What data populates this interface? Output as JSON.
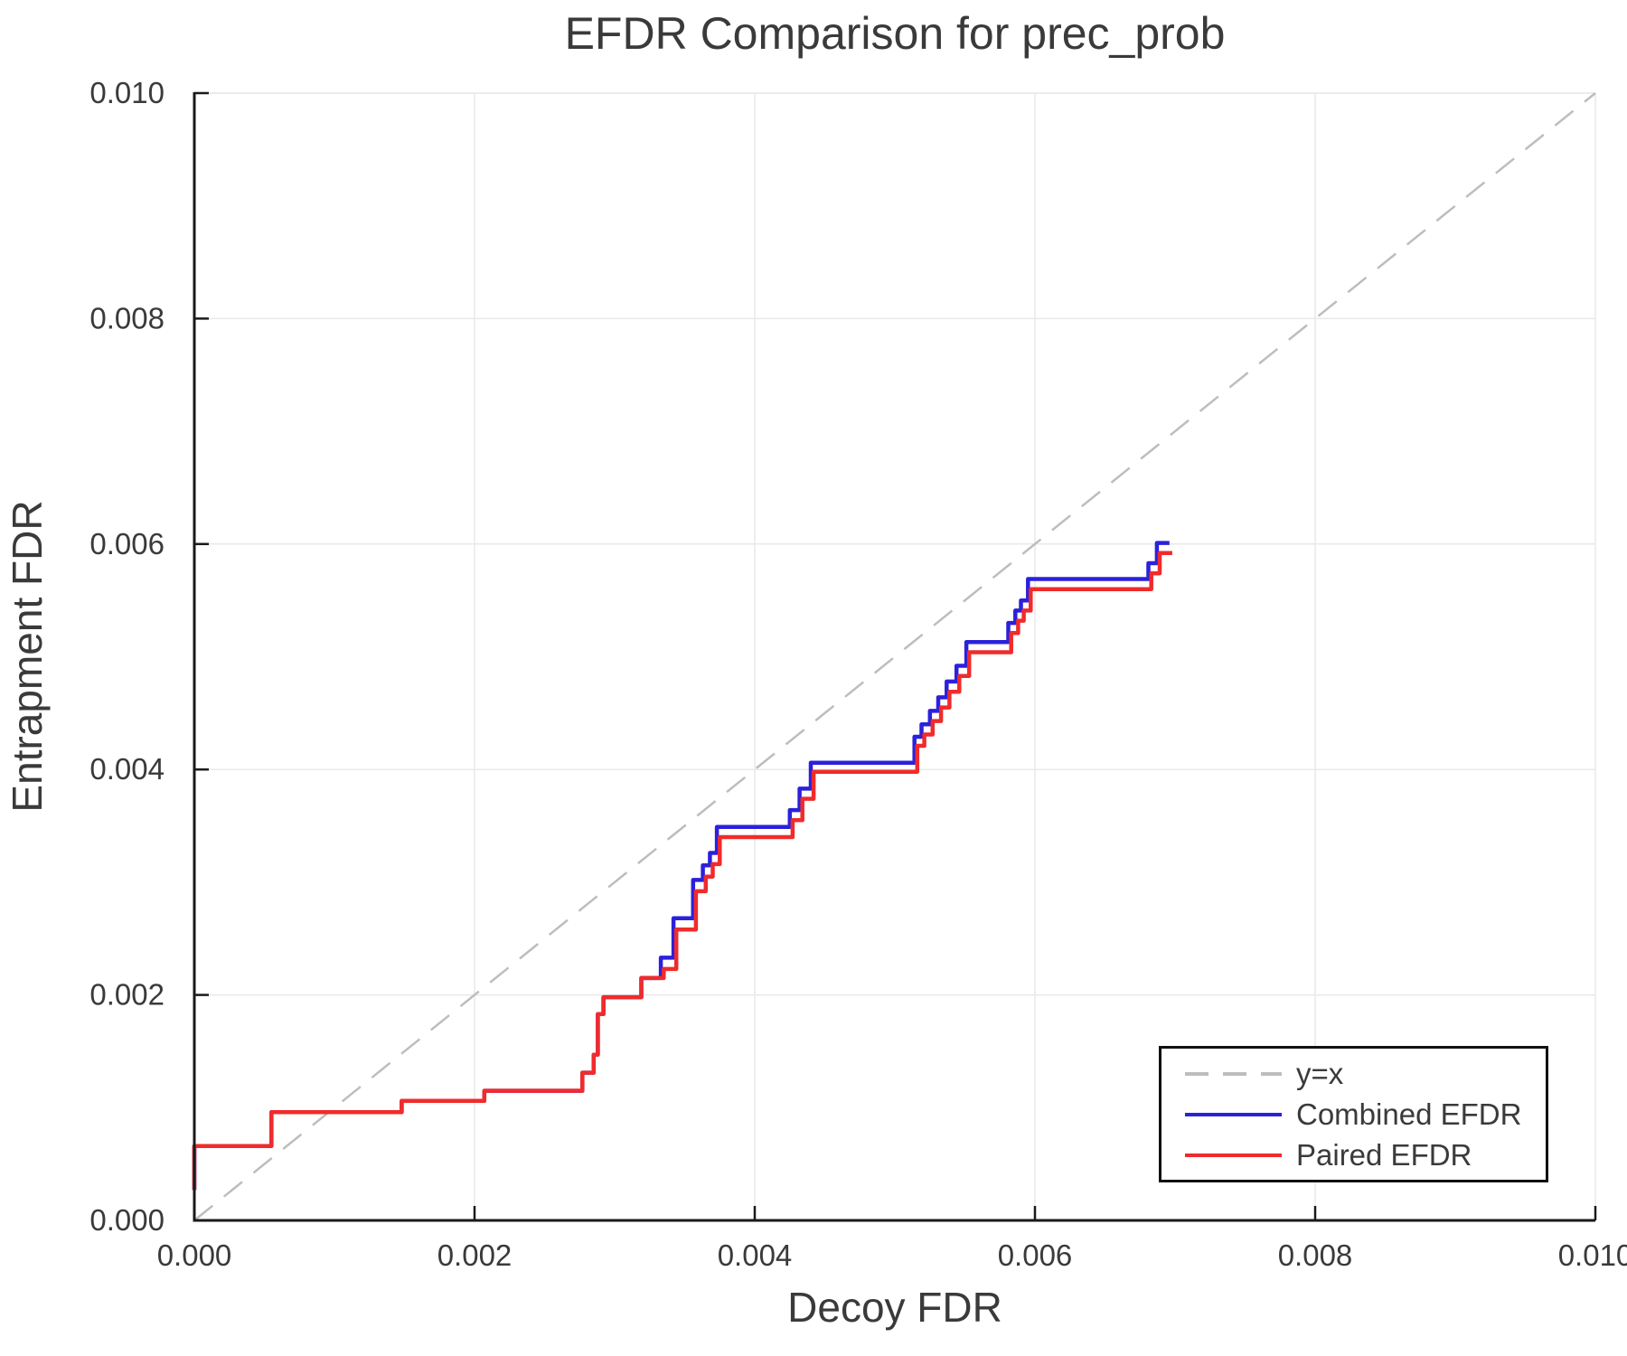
{
  "chart_data": {
    "type": "line",
    "title": "EFDR Comparison for prec_prob",
    "xlabel": "Decoy FDR",
    "ylabel": "Entrapment FDR",
    "xlim": [
      0.0,
      0.01
    ],
    "ylim": [
      0.0,
      0.01
    ],
    "x_ticks": [
      0.0,
      0.002,
      0.004,
      0.006,
      0.008,
      0.01
    ],
    "y_ticks": [
      0.0,
      0.002,
      0.004,
      0.006,
      0.008,
      0.01
    ],
    "tick_decimals": 3,
    "grid": true,
    "legend_position": "lower right",
    "reference_line": {
      "label": "y=x",
      "style": "dashed",
      "color": "#bdbdbd",
      "points": [
        [
          0.0,
          0.0
        ],
        [
          0.01,
          0.01
        ]
      ]
    },
    "series": [
      {
        "name": "Combined EFDR",
        "color": "#2b21db",
        "step": true,
        "points": [
          [
            0.0,
            0.00027
          ],
          [
            0.0,
            0.00066
          ],
          [
            0.00055,
            0.00066
          ],
          [
            0.00055,
            0.00096
          ],
          [
            0.00148,
            0.00096
          ],
          [
            0.00148,
            0.00106
          ],
          [
            0.00207,
            0.00106
          ],
          [
            0.00207,
            0.00115
          ],
          [
            0.00277,
            0.00115
          ],
          [
            0.00277,
            0.00131
          ],
          [
            0.00285,
            0.00131
          ],
          [
            0.00285,
            0.00147
          ],
          [
            0.00288,
            0.00147
          ],
          [
            0.00288,
            0.00183
          ],
          [
            0.00292,
            0.00183
          ],
          [
            0.00292,
            0.00198
          ],
          [
            0.00319,
            0.00198
          ],
          [
            0.00319,
            0.00215
          ],
          [
            0.00333,
            0.00215
          ],
          [
            0.00333,
            0.00233
          ],
          [
            0.00342,
            0.00233
          ],
          [
            0.00342,
            0.00268
          ],
          [
            0.00356,
            0.00268
          ],
          [
            0.00356,
            0.00302
          ],
          [
            0.00363,
            0.00302
          ],
          [
            0.00363,
            0.00315
          ],
          [
            0.00368,
            0.00315
          ],
          [
            0.00368,
            0.00326
          ],
          [
            0.00373,
            0.00326
          ],
          [
            0.00373,
            0.00349
          ],
          [
            0.00425,
            0.00349
          ],
          [
            0.00425,
            0.00364
          ],
          [
            0.00432,
            0.00364
          ],
          [
            0.00432,
            0.00383
          ],
          [
            0.0044,
            0.00383
          ],
          [
            0.0044,
            0.00406
          ],
          [
            0.00514,
            0.00406
          ],
          [
            0.00514,
            0.00429
          ],
          [
            0.00519,
            0.00429
          ],
          [
            0.00519,
            0.0044
          ],
          [
            0.00525,
            0.0044
          ],
          [
            0.00525,
            0.00452
          ],
          [
            0.00531,
            0.00452
          ],
          [
            0.00531,
            0.00464
          ],
          [
            0.00537,
            0.00464
          ],
          [
            0.00537,
            0.00478
          ],
          [
            0.00544,
            0.00478
          ],
          [
            0.00544,
            0.00492
          ],
          [
            0.00551,
            0.00492
          ],
          [
            0.00551,
            0.00513
          ],
          [
            0.00581,
            0.00513
          ],
          [
            0.00581,
            0.0053
          ],
          [
            0.00586,
            0.0053
          ],
          [
            0.00586,
            0.00541
          ],
          [
            0.0059,
            0.00541
          ],
          [
            0.0059,
            0.0055
          ],
          [
            0.00595,
            0.0055
          ],
          [
            0.00595,
            0.00569
          ],
          [
            0.00681,
            0.00569
          ],
          [
            0.00681,
            0.00583
          ],
          [
            0.00687,
            0.00583
          ],
          [
            0.00687,
            0.00601
          ],
          [
            0.00696,
            0.00601
          ]
        ]
      },
      {
        "name": "Paired EFDR",
        "color": "#f02b2b",
        "step": true,
        "points": [
          [
            0.0,
            0.00027
          ],
          [
            0.0,
            0.00066
          ],
          [
            0.00055,
            0.00066
          ],
          [
            0.00055,
            0.00096
          ],
          [
            0.00148,
            0.00096
          ],
          [
            0.00148,
            0.00106
          ],
          [
            0.00207,
            0.00106
          ],
          [
            0.00207,
            0.00115
          ],
          [
            0.00277,
            0.00115
          ],
          [
            0.00277,
            0.00131
          ],
          [
            0.00285,
            0.00131
          ],
          [
            0.00285,
            0.00147
          ],
          [
            0.00288,
            0.00147
          ],
          [
            0.00288,
            0.00183
          ],
          [
            0.00292,
            0.00183
          ],
          [
            0.00292,
            0.00198
          ],
          [
            0.00319,
            0.00198
          ],
          [
            0.00319,
            0.00215
          ],
          [
            0.00335,
            0.00215
          ],
          [
            0.00335,
            0.00223
          ],
          [
            0.00344,
            0.00223
          ],
          [
            0.00344,
            0.00258
          ],
          [
            0.00358,
            0.00258
          ],
          [
            0.00358,
            0.00292
          ],
          [
            0.00365,
            0.00292
          ],
          [
            0.00365,
            0.00305
          ],
          [
            0.0037,
            0.00305
          ],
          [
            0.0037,
            0.00316
          ],
          [
            0.00375,
            0.00316
          ],
          [
            0.00375,
            0.0034
          ],
          [
            0.00427,
            0.0034
          ],
          [
            0.00427,
            0.00355
          ],
          [
            0.00434,
            0.00355
          ],
          [
            0.00434,
            0.00374
          ],
          [
            0.00442,
            0.00374
          ],
          [
            0.00442,
            0.00398
          ],
          [
            0.00516,
            0.00398
          ],
          [
            0.00516,
            0.00421
          ],
          [
            0.00521,
            0.00421
          ],
          [
            0.00521,
            0.00431
          ],
          [
            0.00527,
            0.00431
          ],
          [
            0.00527,
            0.00443
          ],
          [
            0.00533,
            0.00443
          ],
          [
            0.00533,
            0.00455
          ],
          [
            0.00539,
            0.00455
          ],
          [
            0.00539,
            0.00469
          ],
          [
            0.00546,
            0.00469
          ],
          [
            0.00546,
            0.00483
          ],
          [
            0.00553,
            0.00483
          ],
          [
            0.00553,
            0.00504
          ],
          [
            0.00583,
            0.00504
          ],
          [
            0.00583,
            0.00521
          ],
          [
            0.00588,
            0.00521
          ],
          [
            0.00588,
            0.00532
          ],
          [
            0.00592,
            0.00532
          ],
          [
            0.00592,
            0.00541
          ],
          [
            0.00597,
            0.00541
          ],
          [
            0.00597,
            0.0056
          ],
          [
            0.00683,
            0.0056
          ],
          [
            0.00683,
            0.00574
          ],
          [
            0.00689,
            0.00574
          ],
          [
            0.00689,
            0.00592
          ],
          [
            0.00698,
            0.00592
          ]
        ]
      }
    ]
  },
  "colors": {
    "background": "#ffffff",
    "grid": "#e9e9e9",
    "spine": "#1a1a1a",
    "text": "#3a3a3a"
  }
}
